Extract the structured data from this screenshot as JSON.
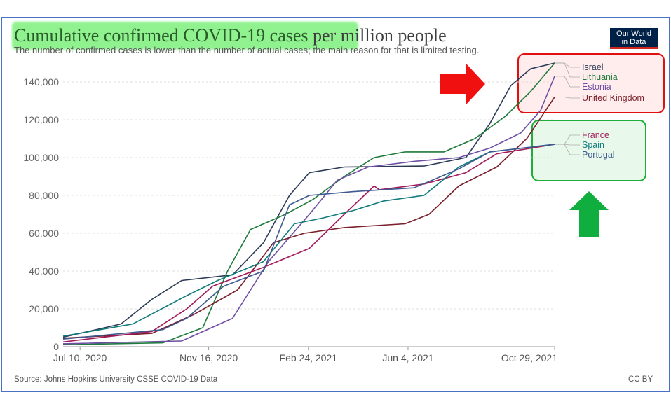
{
  "title_highlighted": "Cumulative confirmed COVID-19 cases",
  "title_rest": " per million people",
  "subtitle": "The number of confirmed cases is lower than the number of actual cases; the main reason for that is limited testing.",
  "logo_line1": "Our World",
  "logo_line2": "in Data",
  "source": "Source: Johns Hopkins University CSSE COVID-19 Data",
  "license": "CC BY",
  "colors": {
    "highlight": "#7cf07c",
    "red_box": "#e01010",
    "green_box": "#1fae3a",
    "red_arrow": "#f01010",
    "green_arrow": "#0fae3e"
  },
  "chart_data": {
    "type": "line",
    "x_ticks": [
      "Jul 10, 2020",
      "Nov 16, 2020",
      "Feb 24, 2021",
      "Jun 4, 2021",
      "Oct 29, 2021"
    ],
    "x_range": [
      "2020-06-23",
      "2021-10-29"
    ],
    "ylim": [
      0,
      150000
    ],
    "y_ticks": [
      0,
      20000,
      40000,
      60000,
      80000,
      100000,
      120000,
      140000
    ],
    "y_tick_labels": [
      "0",
      "20,000",
      "40,000",
      "60,000",
      "80,000",
      "100,000",
      "120,000",
      "140,000"
    ],
    "grid": "horizontal dashed",
    "series": [
      {
        "name": "Israel",
        "color": "#2b3a55",
        "points": [
          [
            "2020-06-23",
            5000
          ],
          [
            "2020-08-20",
            12000
          ],
          [
            "2020-09-20",
            25000
          ],
          [
            "2020-10-20",
            35000
          ],
          [
            "2020-12-10",
            38000
          ],
          [
            "2021-01-10",
            55000
          ],
          [
            "2021-02-05",
            80000
          ],
          [
            "2021-02-25",
            92000
          ],
          [
            "2021-04-01",
            95000
          ],
          [
            "2021-06-20",
            95500
          ],
          [
            "2021-08-01",
            100000
          ],
          [
            "2021-08-25",
            118000
          ],
          [
            "2021-09-15",
            138000
          ],
          [
            "2021-10-05",
            147000
          ],
          [
            "2021-10-29",
            150000
          ]
        ]
      },
      {
        "name": "Lithuania",
        "color": "#1e7a3a",
        "points": [
          [
            "2020-06-23",
            1000
          ],
          [
            "2020-10-01",
            2000
          ],
          [
            "2020-11-10",
            10000
          ],
          [
            "2020-12-05",
            40000
          ],
          [
            "2020-12-28",
            62000
          ],
          [
            "2021-02-01",
            70000
          ],
          [
            "2021-03-01",
            78000
          ],
          [
            "2021-04-01",
            90000
          ],
          [
            "2021-05-01",
            100000
          ],
          [
            "2021-06-01",
            103000
          ],
          [
            "2021-07-10",
            103000
          ],
          [
            "2021-08-10",
            110000
          ],
          [
            "2021-09-10",
            122000
          ],
          [
            "2021-10-05",
            135000
          ],
          [
            "2021-10-29",
            150000
          ]
        ]
      },
      {
        "name": "Estonia",
        "color": "#6e4fa3",
        "points": [
          [
            "2020-06-23",
            1500
          ],
          [
            "2020-10-20",
            3000
          ],
          [
            "2020-12-10",
            15000
          ],
          [
            "2021-01-15",
            45000
          ],
          [
            "2021-02-25",
            70000
          ],
          [
            "2021-03-25",
            88000
          ],
          [
            "2021-04-25",
            95000
          ],
          [
            "2021-06-10",
            98000
          ],
          [
            "2021-07-25",
            100000
          ],
          [
            "2021-08-25",
            105000
          ],
          [
            "2021-09-25",
            113000
          ],
          [
            "2021-10-15",
            125000
          ],
          [
            "2021-10-29",
            143000
          ]
        ]
      },
      {
        "name": "United Kingdom",
        "color": "#7a1f2b",
        "points": [
          [
            "2020-06-23",
            4500
          ],
          [
            "2020-09-20",
            7000
          ],
          [
            "2020-11-01",
            17000
          ],
          [
            "2020-12-15",
            30000
          ],
          [
            "2021-01-20",
            55000
          ],
          [
            "2021-02-20",
            60000
          ],
          [
            "2021-04-01",
            63000
          ],
          [
            "2021-06-01",
            65000
          ],
          [
            "2021-06-25",
            70000
          ],
          [
            "2021-07-25",
            85000
          ],
          [
            "2021-09-01",
            95000
          ],
          [
            "2021-10-01",
            110000
          ],
          [
            "2021-10-29",
            132000
          ]
        ]
      },
      {
        "name": "France",
        "color": "#a31a5a",
        "points": [
          [
            "2020-06-23",
            2500
          ],
          [
            "2020-09-20",
            8000
          ],
          [
            "2020-10-25",
            20000
          ],
          [
            "2020-11-20",
            32000
          ],
          [
            "2021-01-10",
            42000
          ],
          [
            "2021-02-25",
            52000
          ],
          [
            "2021-04-01",
            70000
          ],
          [
            "2021-05-01",
            85000
          ],
          [
            "2021-05-06",
            83000
          ],
          [
            "2021-06-20",
            86000
          ],
          [
            "2021-08-01",
            92000
          ],
          [
            "2021-09-01",
            102000
          ],
          [
            "2021-10-29",
            107000
          ]
        ]
      },
      {
        "name": "Spain",
        "color": "#0f7b7b",
        "points": [
          [
            "2020-06-23",
            5500
          ],
          [
            "2020-09-01",
            12000
          ],
          [
            "2020-10-25",
            27000
          ],
          [
            "2020-11-25",
            35000
          ],
          [
            "2021-01-10",
            45000
          ],
          [
            "2021-02-10",
            65000
          ],
          [
            "2021-03-10",
            68000
          ],
          [
            "2021-04-10",
            72000
          ],
          [
            "2021-05-10",
            77000
          ],
          [
            "2021-06-20",
            80000
          ],
          [
            "2021-07-25",
            95000
          ],
          [
            "2021-08-25",
            103000
          ],
          [
            "2021-10-29",
            107000
          ]
        ]
      },
      {
        "name": "Portugal",
        "color": "#3e5a90",
        "points": [
          [
            "2020-06-23",
            4000
          ],
          [
            "2020-10-01",
            9000
          ],
          [
            "2020-10-25",
            15000
          ],
          [
            "2020-12-01",
            32000
          ],
          [
            "2021-01-10",
            40000
          ],
          [
            "2021-02-05",
            75000
          ],
          [
            "2021-02-25",
            80000
          ],
          [
            "2021-04-10",
            82000
          ],
          [
            "2021-06-10",
            84000
          ],
          [
            "2021-07-25",
            94000
          ],
          [
            "2021-08-25",
            103000
          ],
          [
            "2021-10-29",
            107000
          ]
        ]
      }
    ]
  }
}
